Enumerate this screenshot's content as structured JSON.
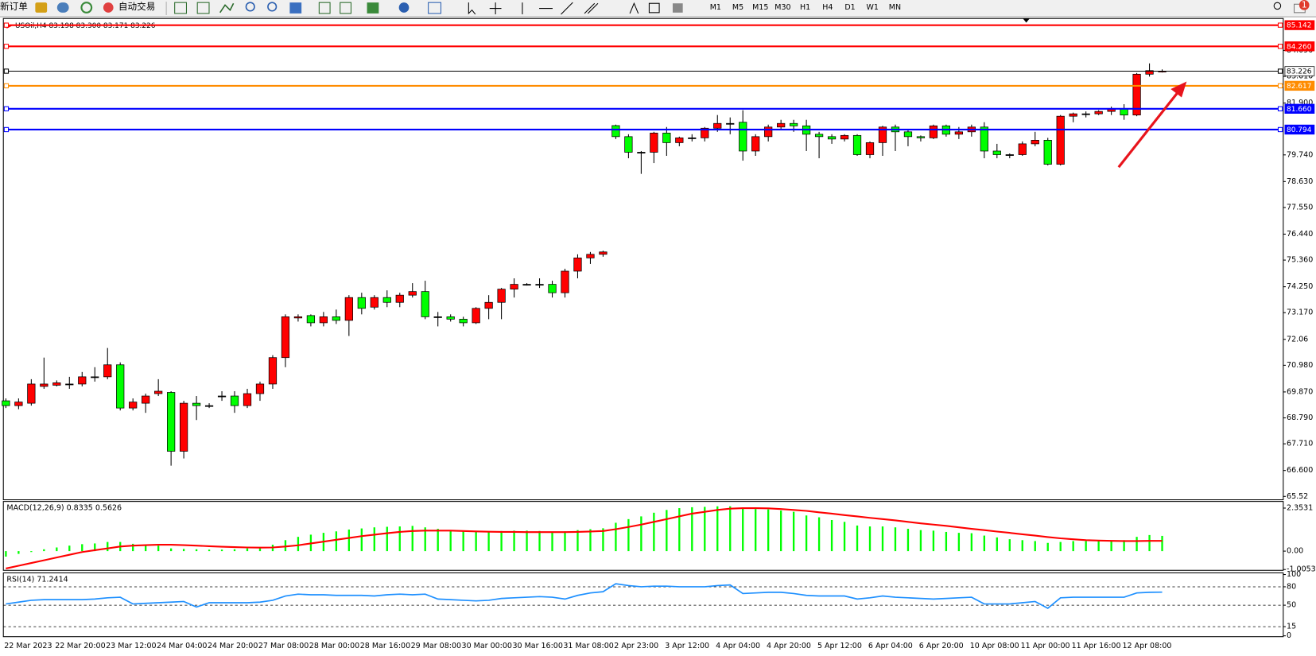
{
  "toolbar": {
    "new_order": "新订单",
    "auto_trading": "自动交易",
    "timeframes": [
      "M1",
      "M5",
      "M15",
      "M30",
      "H1",
      "H4",
      "D1",
      "W1",
      "MN"
    ],
    "notification_count": 1
  },
  "chart_data": [
    {
      "type": "candlestick",
      "title": "USOil,H4  83.198 83.300 83.171 83.226",
      "categories": [
        "22 Mar 2023",
        null,
        null,
        null,
        "22 Mar 20:00",
        null,
        null,
        null,
        "23 Mar 12:00",
        null,
        null,
        null,
        "24 Mar 04:00",
        null,
        null,
        null,
        "24 Mar 20:00",
        null,
        null,
        null,
        "27 Mar 08:00",
        null,
        null,
        null,
        "28 Mar 00:00",
        null,
        null,
        null,
        "28 Mar 16:00",
        null,
        null,
        null,
        "29 Mar 08:00",
        null,
        null,
        null,
        "30 Mar 00:00",
        null,
        null,
        null,
        "30 Mar 16:00",
        null,
        null,
        null,
        "31 Mar 08:00",
        null,
        null,
        null,
        "2 Apr 23:00",
        null,
        null,
        null,
        "3 Apr 12:00",
        null,
        null,
        null,
        "4 Apr 04:00",
        null,
        null,
        null,
        "4 Apr 20:00",
        null,
        null,
        null,
        "5 Apr 12:00",
        null,
        null,
        null,
        "6 Apr 04:00",
        null,
        null,
        null,
        "6 Apr 20:00",
        null,
        null,
        null,
        "10 Apr 08:00",
        null,
        null,
        null,
        "11 Apr 00:00",
        null,
        null,
        null,
        "11 Apr 16:00",
        null,
        null,
        null,
        "12 Apr 08:00",
        null,
        null,
        null
      ],
      "open": [
        69.5,
        69.3,
        69.4,
        70.1,
        70.15,
        70.2,
        70.2,
        70.5,
        70.5,
        71.0,
        69.2,
        69.4,
        69.8,
        69.85,
        67.4,
        69.4,
        69.3,
        69.7,
        69.7,
        69.3,
        69.8,
        70.2,
        71.3,
        72.95,
        73.05,
        72.75,
        73.0,
        72.85,
        73.8,
        73.4,
        73.8,
        73.6,
        73.9,
        74.05,
        73.0,
        73.0,
        72.9,
        72.75,
        73.35,
        73.6,
        74.15,
        74.35,
        74.35,
        74.35,
        74.0,
        74.9,
        75.45,
        75.6,
        80.96,
        80.5,
        79.85,
        79.85,
        80.65,
        80.25,
        80.45,
        80.45,
        80.85,
        81.05,
        81.1,
        79.9,
        80.5,
        80.9,
        81.05,
        80.95,
        80.6,
        80.5,
        80.4,
        80.55,
        79.75,
        80.25,
        80.9,
        80.7,
        80.5,
        80.45,
        80.95,
        80.6,
        80.7,
        80.9,
        79.9,
        79.75,
        79.75,
        80.2,
        80.35,
        79.35,
        81.35,
        81.45,
        81.45,
        81.55,
        81.65,
        81.4,
        83.1,
        83.198
      ],
      "high": [
        69.6,
        69.6,
        70.4,
        71.3,
        70.35,
        70.5,
        70.7,
        70.9,
        71.7,
        71.1,
        69.6,
        69.8,
        70.4,
        69.9,
        69.5,
        69.7,
        69.4,
        69.9,
        69.9,
        70.0,
        70.3,
        71.4,
        73.1,
        73.1,
        73.1,
        73.2,
        73.3,
        73.9,
        74.0,
        73.9,
        74.1,
        74.0,
        74.4,
        74.5,
        73.2,
        73.1,
        73.0,
        73.4,
        73.9,
        74.2,
        74.6,
        74.4,
        74.6,
        74.5,
        75.0,
        75.6,
        75.7,
        75.75,
        81.0,
        80.6,
        79.9,
        80.7,
        80.9,
        80.5,
        80.6,
        80.9,
        81.4,
        81.3,
        81.6,
        80.6,
        81.0,
        81.2,
        81.2,
        81.2,
        80.7,
        80.6,
        80.6,
        80.6,
        80.3,
        80.95,
        81.0,
        80.8,
        80.55,
        81.0,
        81.0,
        80.9,
        81.0,
        81.1,
        80.2,
        79.8,
        80.3,
        80.7,
        80.45,
        81.4,
        81.5,
        81.55,
        81.6,
        81.75,
        81.85,
        83.15,
        83.55,
        83.3
      ],
      "low": [
        69.2,
        69.15,
        69.3,
        70.0,
        70.1,
        70.0,
        70.1,
        70.3,
        70.4,
        69.1,
        69.1,
        69.0,
        69.7,
        66.8,
        67.1,
        68.7,
        69.2,
        69.5,
        69.0,
        69.2,
        69.5,
        70.0,
        70.9,
        72.8,
        72.6,
        72.6,
        72.7,
        72.2,
        73.1,
        73.3,
        73.4,
        73.4,
        73.8,
        72.9,
        72.6,
        72.8,
        72.6,
        72.7,
        72.9,
        72.9,
        73.8,
        74.3,
        74.2,
        73.8,
        73.8,
        74.6,
        75.2,
        75.5,
        80.4,
        79.6,
        78.95,
        79.4,
        79.7,
        80.1,
        80.3,
        80.3,
        80.7,
        80.6,
        79.5,
        79.7,
        80.3,
        80.8,
        80.7,
        79.9,
        79.6,
        80.2,
        80.3,
        79.7,
        79.6,
        79.7,
        79.9,
        80.1,
        80.3,
        80.4,
        80.5,
        80.4,
        80.5,
        79.6,
        79.6,
        79.6,
        79.7,
        80.1,
        79.3,
        79.3,
        81.1,
        81.3,
        81.4,
        81.4,
        81.2,
        81.35,
        83.0,
        83.171
      ],
      "close": [
        69.3,
        69.45,
        70.2,
        70.2,
        70.25,
        70.2,
        70.5,
        70.5,
        71.0,
        69.2,
        69.45,
        69.7,
        69.9,
        67.4,
        69.4,
        69.3,
        69.3,
        69.7,
        69.3,
        69.8,
        70.2,
        71.3,
        73.0,
        73.0,
        72.75,
        73.0,
        72.85,
        73.8,
        73.35,
        73.8,
        73.6,
        73.9,
        74.05,
        73.0,
        73.0,
        72.9,
        72.75,
        73.35,
        73.6,
        74.15,
        74.35,
        74.35,
        74.35,
        74.0,
        74.9,
        75.45,
        75.6,
        75.7,
        80.5,
        79.85,
        79.85,
        80.65,
        80.25,
        80.45,
        80.45,
        80.85,
        81.05,
        81.05,
        79.9,
        80.5,
        80.9,
        81.05,
        80.95,
        80.6,
        80.5,
        80.4,
        80.55,
        79.75,
        80.25,
        80.9,
        80.7,
        80.5,
        80.45,
        80.95,
        80.6,
        80.7,
        80.9,
        79.9,
        79.75,
        79.75,
        80.2,
        80.35,
        79.35,
        81.35,
        81.45,
        81.45,
        81.55,
        81.65,
        81.4,
        83.1,
        83.25,
        83.226
      ],
      "up_color": "#ff0000",
      "down_color": "#00ff00",
      "ylim": [
        65.38,
        85.42
      ],
      "yticks": [
        {
          "value": 84.09,
          "label": "84.090"
        },
        {
          "value": 83.01,
          "label": "83.010"
        },
        {
          "value": 81.9,
          "label": "81.900"
        },
        {
          "value": 79.74,
          "label": "79.740"
        },
        {
          "value": 78.63,
          "label": "78.630"
        },
        {
          "value": 77.55,
          "label": "77.550"
        },
        {
          "value": 76.44,
          "label": "76.440"
        },
        {
          "value": 75.36,
          "label": "75.360"
        },
        {
          "value": 74.25,
          "label": "74.250"
        },
        {
          "value": 73.17,
          "label": "73.170"
        },
        72.06,
        {
          "value": 70.98,
          "label": "70.980"
        },
        {
          "value": 69.87,
          "label": "69.870"
        },
        {
          "value": 68.79,
          "label": "68.790"
        },
        {
          "value": 67.71,
          "label": "67.710"
        },
        {
          "value": 66.6,
          "label": "66.600"
        },
        65.52
      ],
      "levels": [
        {
          "value": 85.142,
          "label": "85.142",
          "color": "#ff0000"
        },
        {
          "value": 84.26,
          "label": "84.260",
          "color": "#ff0000"
        },
        {
          "value": 83.226,
          "label": "83.226",
          "color": "#000000"
        },
        {
          "value": 82.617,
          "label": "82.617",
          "color": "#ff8c00"
        },
        {
          "value": 81.66,
          "label": "81.660",
          "color": "#0000ff"
        },
        {
          "value": 80.794,
          "label": "80.794",
          "color": "#0000ff"
        }
      ]
    },
    {
      "type": "macd",
      "title": "MACD(12,26,9) 0.8335 0.5626",
      "histogram": {
        "color": "#00ff00",
        "values": [
          -0.3,
          -0.15,
          -0.05,
          0.1,
          0.2,
          0.3,
          0.38,
          0.42,
          0.5,
          0.5,
          0.4,
          0.35,
          0.3,
          0.15,
          0.12,
          0.1,
          0.08,
          0.08,
          0.1,
          0.15,
          0.22,
          0.35,
          0.6,
          0.78,
          0.9,
          1.0,
          1.08,
          1.18,
          1.24,
          1.3,
          1.33,
          1.35,
          1.38,
          1.3,
          1.22,
          1.15,
          1.08,
          1.06,
          1.07,
          1.1,
          1.12,
          1.12,
          1.1,
          1.05,
          1.08,
          1.15,
          1.2,
          1.25,
          1.55,
          1.75,
          1.9,
          2.1,
          2.25,
          2.35,
          2.4,
          2.42,
          2.45,
          2.45,
          2.35,
          2.3,
          2.28,
          2.22,
          2.15,
          1.95,
          1.85,
          1.7,
          1.6,
          1.4,
          1.35,
          1.35,
          1.3,
          1.22,
          1.15,
          1.12,
          1.05,
          1.0,
          0.98,
          0.85,
          0.75,
          0.65,
          0.6,
          0.55,
          0.45,
          0.5,
          0.55,
          0.55,
          0.55,
          0.57,
          0.6,
          0.78,
          0.88,
          0.8335
        ]
      },
      "signal": {
        "color": "#ff0000",
        "values": [
          -0.95,
          -0.8,
          -0.65,
          -0.5,
          -0.35,
          -0.2,
          -0.05,
          0.05,
          0.15,
          0.25,
          0.3,
          0.33,
          0.35,
          0.35,
          0.33,
          0.3,
          0.27,
          0.24,
          0.22,
          0.2,
          0.19,
          0.2,
          0.25,
          0.32,
          0.42,
          0.52,
          0.62,
          0.72,
          0.82,
          0.9,
          0.98,
          1.05,
          1.1,
          1.12,
          1.12,
          1.12,
          1.1,
          1.08,
          1.06,
          1.05,
          1.05,
          1.04,
          1.04,
          1.04,
          1.04,
          1.05,
          1.07,
          1.1,
          1.2,
          1.32,
          1.45,
          1.6,
          1.75,
          1.9,
          2.05,
          2.15,
          2.25,
          2.32,
          2.35,
          2.35,
          2.34,
          2.3,
          2.25,
          2.2,
          2.12,
          2.05,
          1.97,
          1.9,
          1.82,
          1.75,
          1.68,
          1.6,
          1.52,
          1.45,
          1.38,
          1.3,
          1.22,
          1.15,
          1.07,
          1.0,
          0.92,
          0.85,
          0.77,
          0.7,
          0.65,
          0.6,
          0.58,
          0.56,
          0.55,
          0.55,
          0.56,
          0.5626
        ]
      },
      "ylim": [
        -1.05,
        2.67
      ],
      "yticks": [
        2.3531,
        {
          "value": 0,
          "label": "0.00"
        },
        -1.0053
      ]
    },
    {
      "type": "rsi",
      "title": "RSI(14) 71.2414",
      "color": "#1e90ff",
      "values": [
        52,
        55,
        58,
        59,
        59,
        59,
        59,
        60,
        62,
        63,
        52,
        53,
        54,
        55,
        56,
        47,
        54,
        54,
        54,
        54,
        55,
        58,
        65,
        68,
        67,
        67,
        66,
        66,
        66,
        65,
        67,
        68,
        67,
        68,
        60,
        59,
        58,
        57,
        58,
        61,
        62,
        63,
        64,
        63,
        60,
        66,
        70,
        72,
        85,
        82,
        80,
        81,
        81,
        80,
        80,
        80,
        82,
        83,
        69,
        70,
        71,
        71,
        69,
        66,
        65,
        65,
        65,
        60,
        62,
        65,
        63,
        62,
        61,
        60,
        61,
        62,
        63,
        52,
        52,
        52,
        54,
        56,
        45,
        62,
        63,
        63,
        63,
        63,
        63,
        70,
        71,
        71.2414
      ],
      "ylim": [
        0,
        100
      ],
      "yticks": [
        100,
        80,
        50,
        15,
        0
      ],
      "levels": [
        80,
        50,
        15
      ]
    }
  ]
}
